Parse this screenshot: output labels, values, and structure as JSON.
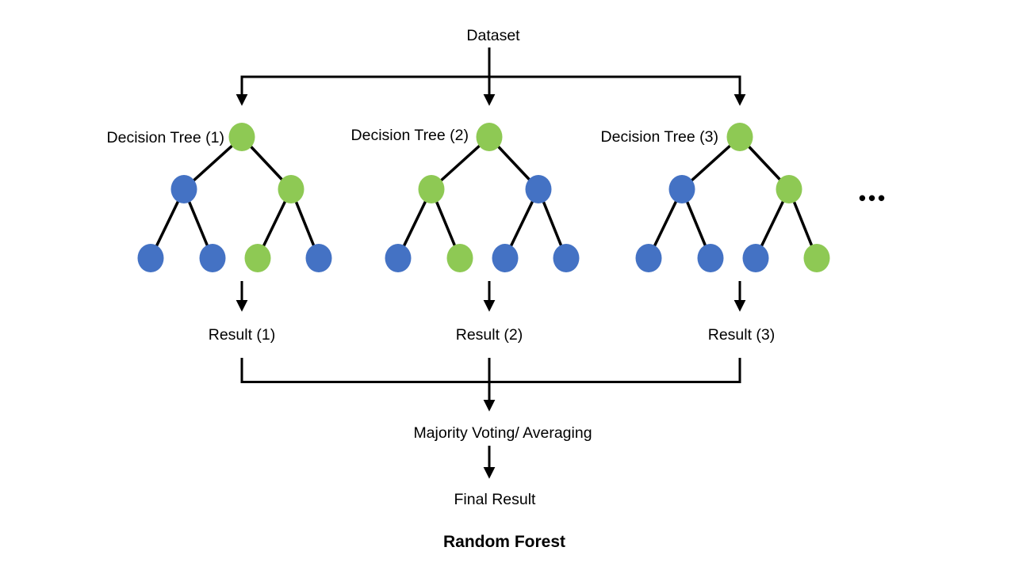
{
  "title": {
    "text": "Random Forest"
  },
  "dataset": {
    "label": "Dataset"
  },
  "ellipsis": "•••",
  "flow": {
    "majority_label": "Majority Voting/ Averaging",
    "final_label": "Final Result"
  },
  "colors": {
    "green": "#8EC954",
    "blue": "#4472C4",
    "line": "#000000",
    "text": "#000000"
  },
  "trees": [
    {
      "label": "Decision Tree (1)",
      "result": "Result (1)",
      "root": "green",
      "level2": [
        "blue",
        "green"
      ],
      "leaves": [
        "blue",
        "blue",
        "green",
        "blue"
      ]
    },
    {
      "label": "Decision Tree (2)",
      "result": "Result (2)",
      "root": "green",
      "level2": [
        "green",
        "blue"
      ],
      "leaves": [
        "blue",
        "green",
        "blue",
        "blue"
      ]
    },
    {
      "label": "Decision Tree (3)",
      "result": "Result (3)",
      "root": "green",
      "level2": [
        "blue",
        "green"
      ],
      "leaves": [
        "blue",
        "blue",
        "blue",
        "green"
      ]
    }
  ]
}
